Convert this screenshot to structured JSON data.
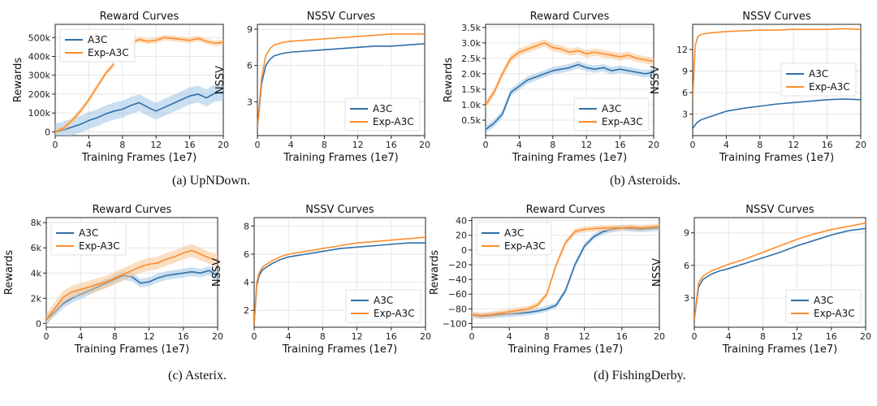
{
  "colors": {
    "a3c": "#2f6fa8",
    "exp": "#ff8c2a",
    "band_a3c": "#9ec4e6",
    "band_exp": "#f7c48f",
    "grid": "#e6e6e6",
    "axis": "#222222"
  },
  "captions": [
    "(a)  UpNDown.",
    "(b)  Asteroids.",
    "(c)  Asterix.",
    "(d)  FishingDerby."
  ],
  "chart_data": [
    {
      "type": "line",
      "title": "Reward Curves",
      "xlabel": "Training Frames (1e7)",
      "ylabel": "Rewards",
      "xlim": [
        0,
        20
      ],
      "ylim": [
        -20000,
        570000
      ],
      "xticks": [
        0,
        4,
        8,
        12,
        16,
        20
      ],
      "xtick_labels": [
        "0",
        "4",
        "8",
        "12",
        "16",
        "20"
      ],
      "yticks": [
        0,
        100000,
        200000,
        300000,
        400000,
        500000
      ],
      "ytick_labels": [
        "0",
        "100k",
        "200k",
        "300k",
        "400k",
        "500k"
      ],
      "legend": {
        "position": "top-left",
        "entries": [
          "A3C",
          "Exp-A3C"
        ]
      },
      "series": [
        {
          "name": "A3C",
          "color": "a3c",
          "band": 45000,
          "x": [
            0,
            1,
            2,
            3,
            4,
            5,
            6,
            7,
            8,
            9,
            10,
            11,
            12,
            13,
            14,
            15,
            16,
            17,
            18,
            19,
            20
          ],
          "y": [
            0,
            10000,
            25000,
            40000,
            60000,
            75000,
            95000,
            110000,
            120000,
            140000,
            155000,
            130000,
            110000,
            130000,
            150000,
            170000,
            190000,
            200000,
            180000,
            205000,
            210000
          ]
        },
        {
          "name": "Exp-A3C",
          "color": "exp",
          "band": 15000,
          "x": [
            0,
            1,
            2,
            3,
            4,
            5,
            6,
            7,
            null,
            9,
            10,
            11,
            12,
            13,
            14,
            15,
            16,
            17,
            18,
            19,
            20
          ],
          "y": [
            0,
            20000,
            60000,
            110000,
            170000,
            240000,
            310000,
            360000,
            null,
            470000,
            490000,
            480000,
            485000,
            500000,
            495000,
            490000,
            485000,
            495000,
            480000,
            470000,
            475000
          ]
        }
      ]
    },
    {
      "type": "line",
      "title": "NSSV Curves",
      "xlabel": "Training Frames (1e7)",
      "ylabel": "NSSV",
      "xlim": [
        0,
        20
      ],
      "ylim": [
        0.2,
        9.4
      ],
      "xticks": [
        0,
        4,
        8,
        12,
        16,
        20
      ],
      "xtick_labels": [
        "0",
        "4",
        "8",
        "12",
        "16",
        "20"
      ],
      "yticks": [
        3,
        6,
        9
      ],
      "ytick_labels": [
        "3",
        "6",
        "9"
      ],
      "legend": {
        "position": "lower-right",
        "entries": [
          "A3C",
          "Exp-A3C"
        ]
      },
      "series": [
        {
          "name": "A3C",
          "color": "a3c",
          "band": 0,
          "x": [
            0,
            0.5,
            1,
            1.5,
            2,
            3,
            4,
            6,
            8,
            10,
            12,
            14,
            16,
            18,
            20
          ],
          "y": [
            0.8,
            4.5,
            6.0,
            6.5,
            6.8,
            7.0,
            7.1,
            7.2,
            7.3,
            7.4,
            7.5,
            7.6,
            7.6,
            7.7,
            7.8
          ]
        },
        {
          "name": "Exp-A3C",
          "color": "exp",
          "band": 0,
          "x": [
            0,
            0.5,
            1,
            1.5,
            2,
            3,
            4,
            6,
            8,
            10,
            12,
            14,
            16,
            18,
            20
          ],
          "y": [
            0.8,
            5.0,
            6.8,
            7.4,
            7.7,
            7.9,
            8.0,
            8.1,
            8.2,
            8.3,
            8.4,
            8.5,
            8.6,
            8.6,
            8.6
          ]
        }
      ]
    },
    {
      "type": "line",
      "title": "Reward Curves",
      "xlabel": "Training Frames (1e7)",
      "ylabel": "Rewards",
      "xlim": [
        0,
        20
      ],
      "ylim": [
        0,
        3600
      ],
      "xticks": [
        0,
        4,
        8,
        12,
        16,
        20
      ],
      "xtick_labels": [
        "0",
        "4",
        "8",
        "12",
        "16",
        "20"
      ],
      "yticks": [
        500,
        1000,
        1500,
        2000,
        2500,
        3000,
        3500
      ],
      "ytick_labels": [
        "0.5k",
        "1.0k",
        "1.5k",
        "2.0k",
        "2.5k",
        "3.0k",
        "3.5k"
      ],
      "legend": {
        "position": "lower-right",
        "entries": [
          "A3C",
          "Exp-A3C"
        ]
      },
      "series": [
        {
          "name": "A3C",
          "color": "a3c",
          "band": 120,
          "x": [
            0,
            1,
            2,
            3,
            4,
            5,
            6,
            7,
            8,
            9,
            10,
            11,
            12,
            13,
            14,
            15,
            16,
            17,
            18,
            19,
            20
          ],
          "y": [
            200,
            400,
            700,
            1400,
            1600,
            1800,
            1900,
            2000,
            2100,
            2150,
            2200,
            2300,
            2200,
            2150,
            2200,
            2100,
            2150,
            2100,
            2050,
            2000,
            2050
          ]
        },
        {
          "name": "Exp-A3C",
          "color": "exp",
          "band": 120,
          "x": [
            0,
            1,
            2,
            3,
            4,
            5,
            6,
            7,
            8,
            9,
            10,
            11,
            12,
            13,
            14,
            15,
            16,
            17,
            18,
            19,
            20
          ],
          "y": [
            1000,
            1400,
            2000,
            2500,
            2700,
            2800,
            2900,
            3000,
            2850,
            2800,
            2700,
            2750,
            2650,
            2700,
            2650,
            2600,
            2550,
            2600,
            2500,
            2450,
            2400
          ]
        }
      ]
    },
    {
      "type": "line",
      "title": "NSSV Curves",
      "xlabel": "Training Frames (1e7)",
      "ylabel": "NSSV",
      "xlim": [
        0,
        20
      ],
      "ylim": [
        0,
        15.5
      ],
      "xticks": [
        0,
        4,
        8,
        12,
        16,
        20
      ],
      "xtick_labels": [
        "0",
        "4",
        "8",
        "12",
        "16",
        "20"
      ],
      "yticks": [
        3,
        6,
        9,
        12
      ],
      "ytick_labels": [
        "3",
        "6",
        "9",
        "12"
      ],
      "legend": {
        "position": "center-right",
        "entries": [
          "A3C",
          "Exp-A3C"
        ]
      },
      "series": [
        {
          "name": "A3C",
          "color": "a3c",
          "band": 0,
          "x": [
            0,
            0.5,
            1,
            2,
            3,
            4,
            6,
            8,
            10,
            12,
            14,
            16,
            18,
            20
          ],
          "y": [
            1.0,
            1.8,
            2.2,
            2.6,
            3.0,
            3.4,
            3.8,
            4.1,
            4.4,
            4.6,
            4.8,
            5.0,
            5.1,
            5.0
          ]
        },
        {
          "name": "Exp-A3C",
          "color": "exp",
          "band": 0,
          "x": [
            0,
            0.3,
            0.6,
            1,
            2,
            3,
            4,
            6,
            8,
            10,
            12,
            14,
            16,
            18,
            20
          ],
          "y": [
            5.0,
            12.5,
            13.8,
            14.1,
            14.3,
            14.4,
            14.5,
            14.6,
            14.7,
            14.7,
            14.8,
            14.8,
            14.8,
            14.9,
            14.8
          ]
        }
      ]
    },
    {
      "type": "line",
      "title": "Reward Curves",
      "xlabel": "Training Frames (1e7)",
      "ylabel": "Rewards",
      "xlim": [
        0,
        20
      ],
      "ylim": [
        -300,
        8400
      ],
      "xticks": [
        0,
        4,
        8,
        12,
        16,
        20
      ],
      "xtick_labels": [
        "0",
        "4",
        "8",
        "12",
        "16",
        "20"
      ],
      "yticks": [
        0,
        2000,
        4000,
        6000,
        8000
      ],
      "ytick_labels": [
        "0",
        "2k",
        "4k",
        "6k",
        "8k"
      ],
      "legend": {
        "position": "top-left",
        "entries": [
          "A3C",
          "Exp-A3C"
        ]
      },
      "series": [
        {
          "name": "A3C",
          "color": "a3c",
          "band": 350,
          "x": [
            0,
            1,
            2,
            3,
            4,
            5,
            6,
            7,
            8,
            9,
            10,
            11,
            12,
            13,
            14,
            15,
            16,
            17,
            18,
            19,
            20
          ],
          "y": [
            300,
            900,
            1600,
            2000,
            2300,
            2600,
            2900,
            3200,
            3500,
            3800,
            3700,
            3200,
            3300,
            3600,
            3800,
            3900,
            4000,
            4100,
            4000,
            4200,
            3800
          ]
        },
        {
          "name": "Exp-A3C",
          "color": "exp",
          "band": 500,
          "x": [
            0,
            1,
            2,
            3,
            4,
            5,
            6,
            7,
            8,
            9,
            10,
            11,
            12,
            13,
            14,
            15,
            16,
            17,
            18,
            19,
            20
          ],
          "y": [
            300,
            1200,
            2100,
            2500,
            2700,
            2900,
            3100,
            3300,
            3600,
            3900,
            4200,
            4500,
            4700,
            4800,
            5100,
            5300,
            5600,
            5800,
            5500,
            5200,
            5000
          ]
        }
      ]
    },
    {
      "type": "line",
      "title": "NSSV Curves",
      "xlabel": "Training Frames (1e7)",
      "ylabel": "NSSV",
      "xlim": [
        0,
        20
      ],
      "ylim": [
        0.8,
        8.6
      ],
      "xticks": [
        0,
        4,
        8,
        12,
        16,
        20
      ],
      "xtick_labels": [
        "0",
        "4",
        "8",
        "12",
        "16",
        "20"
      ],
      "yticks": [
        2,
        4,
        6,
        8
      ],
      "ytick_labels": [
        "2",
        "4",
        "6",
        "8"
      ],
      "legend": {
        "position": "lower-right",
        "entries": [
          "A3C",
          "Exp-A3C"
        ]
      },
      "series": [
        {
          "name": "A3C",
          "color": "a3c",
          "band": 0,
          "x": [
            0,
            0.3,
            0.6,
            1,
            2,
            3,
            4,
            6,
            8,
            10,
            12,
            14,
            16,
            18,
            20
          ],
          "y": [
            1.0,
            3.8,
            4.5,
            4.9,
            5.3,
            5.6,
            5.8,
            6.0,
            6.2,
            6.4,
            6.5,
            6.6,
            6.7,
            6.8,
            6.8
          ]
        },
        {
          "name": "Exp-A3C",
          "color": "exp",
          "band": 0,
          "x": [
            0,
            0.3,
            0.6,
            1,
            2,
            3,
            4,
            6,
            8,
            10,
            12,
            14,
            16,
            18,
            20
          ],
          "y": [
            1.0,
            4.0,
            4.7,
            5.1,
            5.5,
            5.8,
            6.0,
            6.2,
            6.4,
            6.6,
            6.8,
            6.9,
            7.0,
            7.1,
            7.2
          ]
        }
      ]
    },
    {
      "type": "line",
      "title": "Reward Curves",
      "xlabel": "Training Frames (1e7)",
      "ylabel": "Rewards",
      "xlim": [
        0,
        20
      ],
      "ylim": [
        -105,
        44
      ],
      "xticks": [
        0,
        4,
        8,
        12,
        16,
        20
      ],
      "xtick_labels": [
        "0",
        "4",
        "8",
        "12",
        "16",
        "20"
      ],
      "yticks": [
        -100,
        -80,
        -60,
        -40,
        -20,
        0,
        20,
        40
      ],
      "ytick_labels": [
        "−100",
        "−80",
        "−60",
        "−40",
        "−20",
        "0",
        "20",
        "40"
      ],
      "legend": {
        "position": "top-left",
        "entries": [
          "A3C",
          "Exp-A3C"
        ]
      },
      "series": [
        {
          "name": "A3C",
          "color": "a3c",
          "band": 4,
          "x": [
            0,
            1,
            2,
            3,
            4,
            5,
            6,
            7,
            8,
            9,
            10,
            11,
            12,
            13,
            14,
            15,
            16,
            17,
            18,
            19,
            20
          ],
          "y": [
            -88,
            -90,
            -89,
            -88,
            -87,
            -86,
            -85,
            -83,
            -80,
            -75,
            -55,
            -20,
            5,
            18,
            25,
            28,
            30,
            29,
            28,
            29,
            30
          ]
        },
        {
          "name": "Exp-A3C",
          "color": "exp",
          "band": 4,
          "x": [
            0,
            1,
            2,
            3,
            4,
            5,
            6,
            7,
            8,
            9,
            10,
            11,
            12,
            13,
            14,
            15,
            16,
            17,
            18,
            19,
            20
          ],
          "y": [
            -88,
            -89,
            -88,
            -86,
            -84,
            -82,
            -80,
            -75,
            -60,
            -20,
            10,
            25,
            28,
            29,
            30,
            30,
            30,
            31,
            30,
            31,
            32
          ]
        }
      ]
    },
    {
      "type": "line",
      "title": "NSSV Curves",
      "xlabel": "Training Frames (1e7)",
      "ylabel": "NSSV",
      "xlim": [
        0,
        20
      ],
      "ylim": [
        0.3,
        10.4
      ],
      "xticks": [
        0,
        4,
        8,
        12,
        16,
        20
      ],
      "xtick_labels": [
        "0",
        "4",
        "8",
        "12",
        "16",
        "20"
      ],
      "yticks": [
        3,
        6,
        9
      ],
      "ytick_labels": [
        "3",
        "6",
        "9"
      ],
      "legend": {
        "position": "lower-right",
        "entries": [
          "A3C",
          "Exp-A3C"
        ]
      },
      "series": [
        {
          "name": "A3C",
          "color": "a3c",
          "band": 0,
          "x": [
            0,
            0.5,
            1,
            2,
            3,
            4,
            6,
            8,
            10,
            12,
            14,
            16,
            18,
            20
          ],
          "y": [
            1.0,
            4.0,
            4.7,
            5.2,
            5.5,
            5.7,
            6.2,
            6.7,
            7.2,
            7.8,
            8.3,
            8.8,
            9.2,
            9.4
          ]
        },
        {
          "name": "Exp-A3C",
          "color": "exp",
          "band": 0,
          "x": [
            0,
            0.5,
            1,
            2,
            3,
            4,
            6,
            8,
            10,
            12,
            14,
            16,
            18,
            20
          ],
          "y": [
            1.0,
            4.4,
            5.0,
            5.5,
            5.8,
            6.1,
            6.6,
            7.2,
            7.8,
            8.4,
            8.9,
            9.3,
            9.6,
            9.9
          ]
        }
      ]
    }
  ]
}
